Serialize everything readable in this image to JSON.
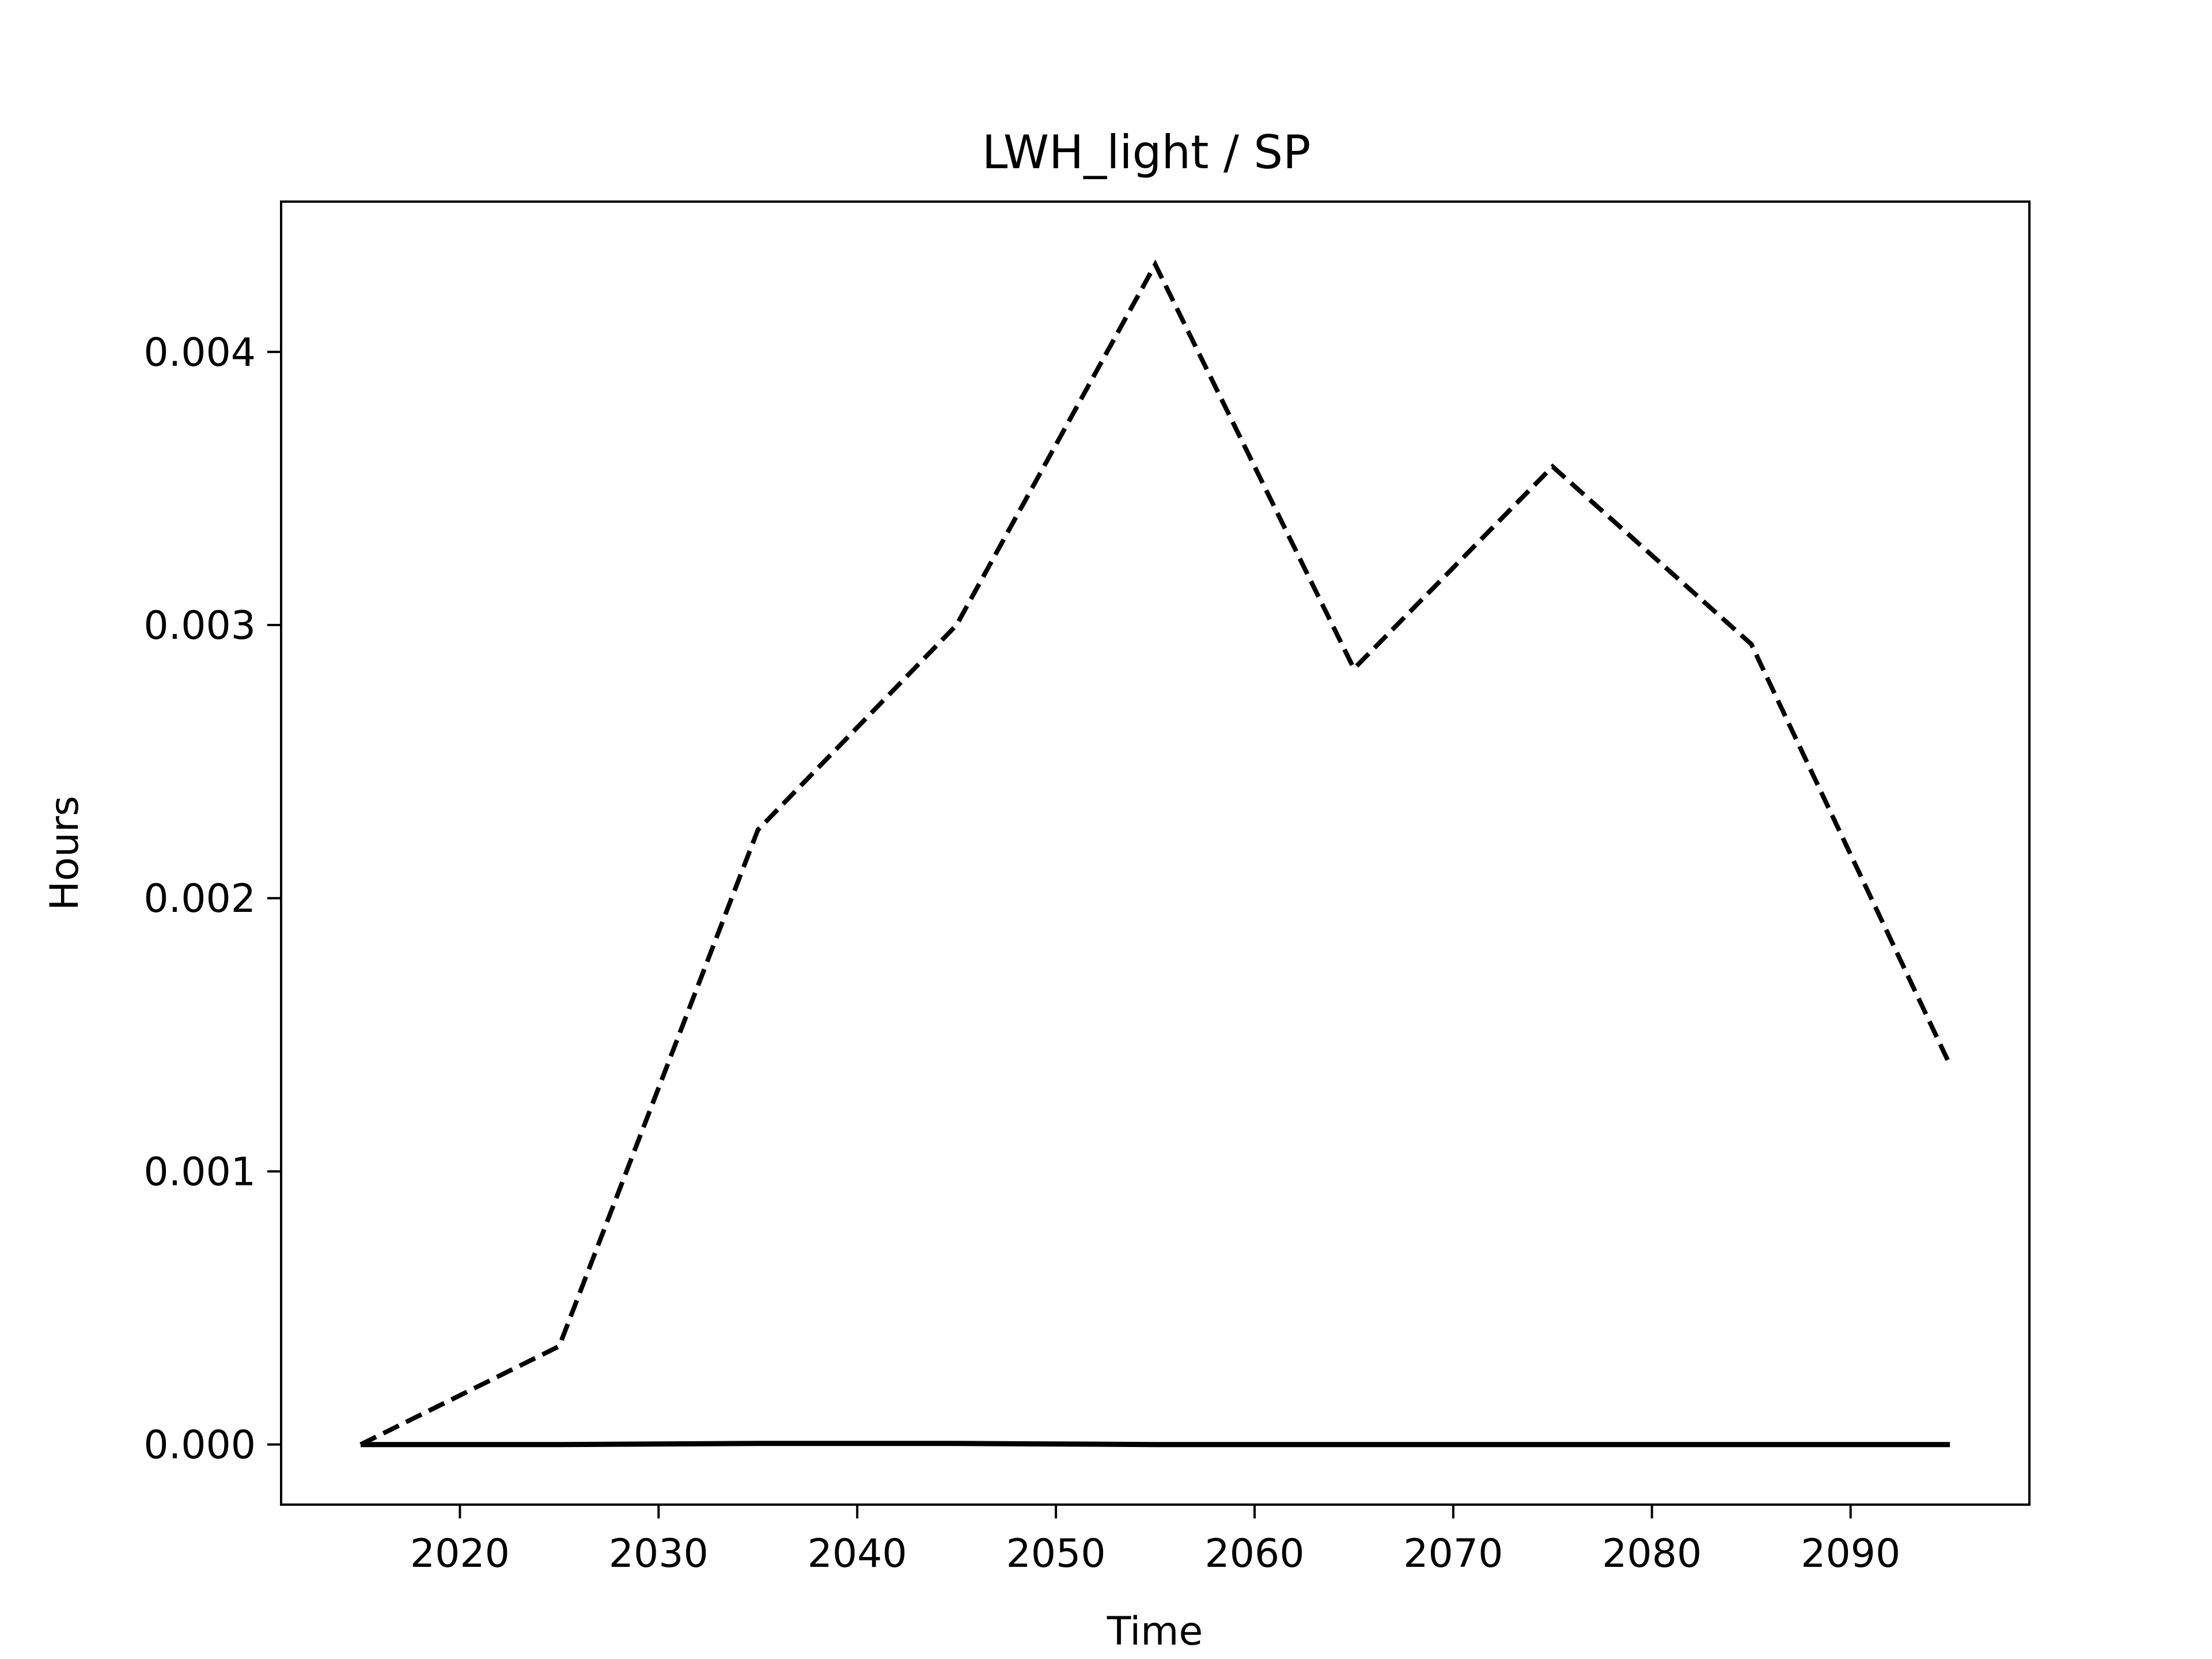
{
  "chart_data": {
    "type": "line",
    "title": "LWH_light / SP",
    "xlabel": "Time",
    "ylabel": "Hours",
    "xlim": [
      2011,
      2099
    ],
    "ylim": [
      -0.00022,
      0.00455
    ],
    "xticks": [
      2020,
      2030,
      2040,
      2050,
      2060,
      2070,
      2080,
      2090
    ],
    "yticks": [
      0.0,
      0.001,
      0.002,
      0.003,
      0.004
    ],
    "ytick_labels": [
      "0.000",
      "0.001",
      "0.002",
      "0.003",
      "0.004"
    ],
    "grid": false,
    "legend": "none",
    "x": [
      2015,
      2025,
      2035,
      2045,
      2055,
      2065,
      2075,
      2085,
      2095
    ],
    "series": [
      {
        "style": "dashed",
        "color": "#000000",
        "values": [
          0.0,
          0.00036,
          0.00225,
          0.003,
          0.00432,
          0.00284,
          0.00358,
          0.00293,
          0.00139
        ]
      },
      {
        "style": "solid",
        "color": "#000000",
        "values": [
          0.0,
          0.0,
          4e-06,
          4e-06,
          0.0,
          0.0,
          0.0,
          0.0,
          0.0
        ]
      }
    ]
  }
}
